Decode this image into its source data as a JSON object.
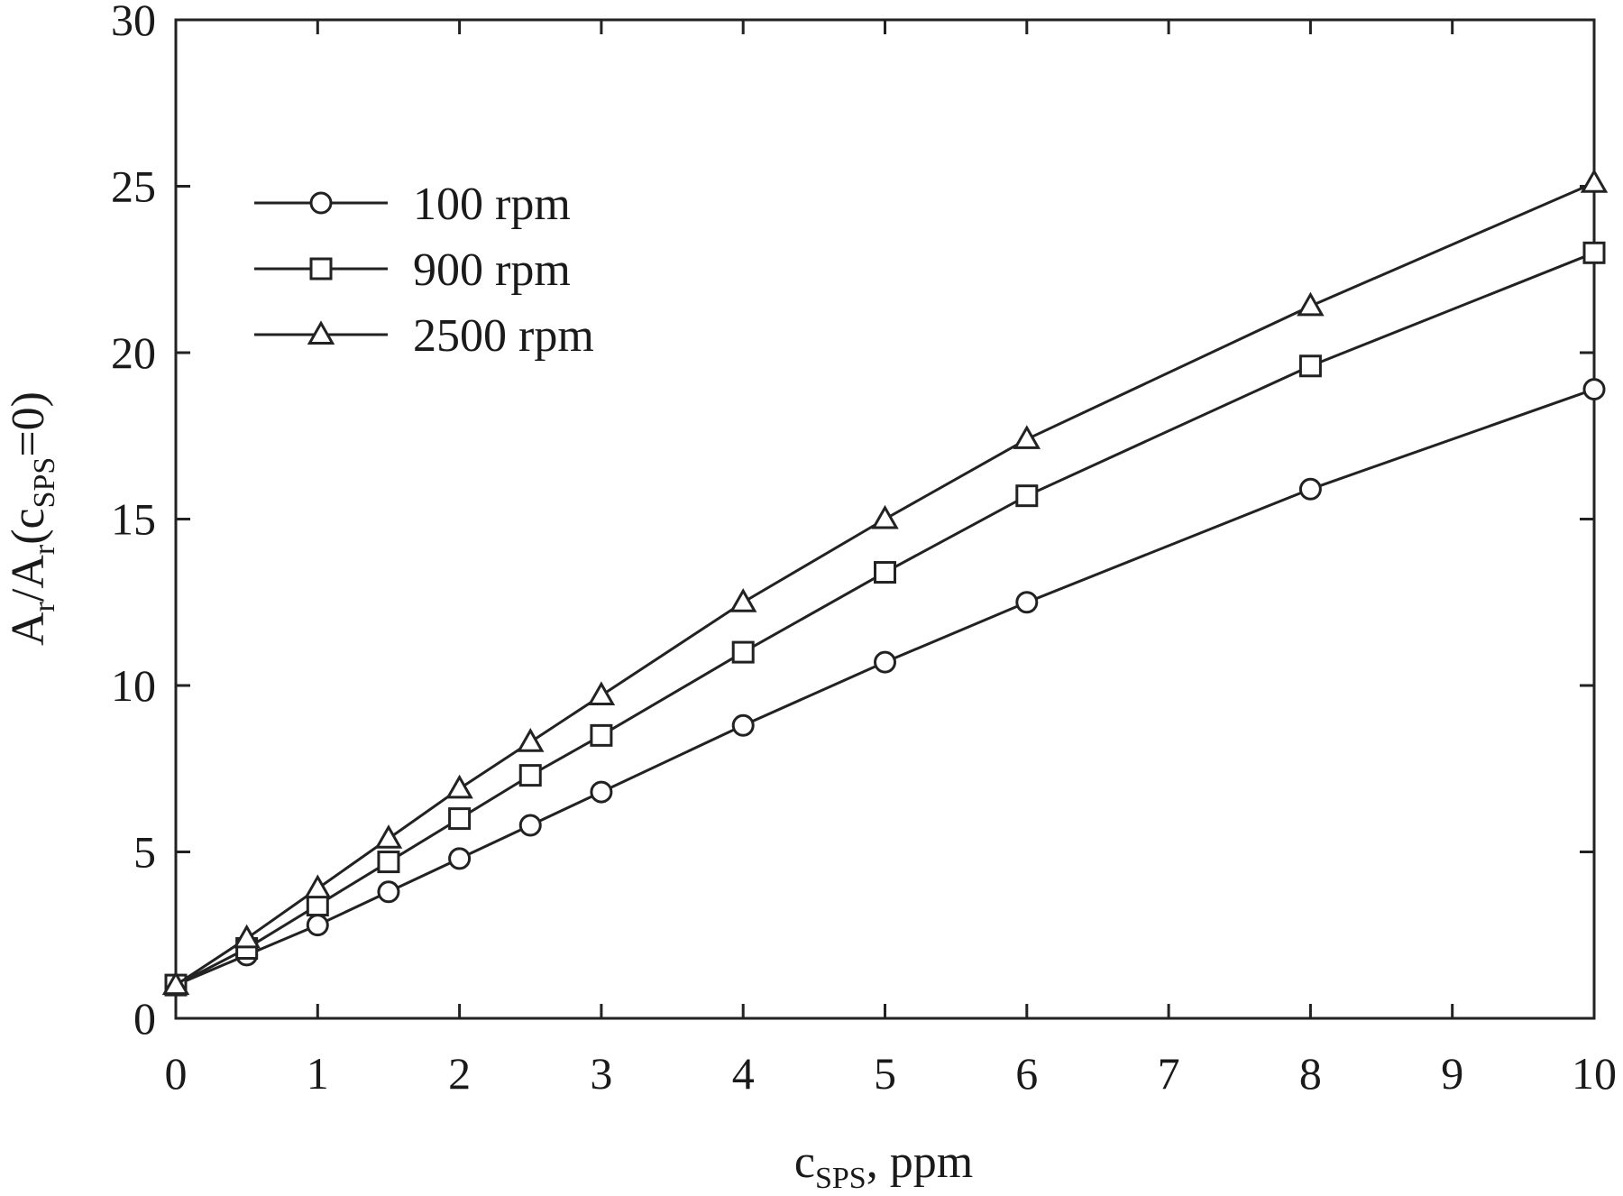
{
  "chart_data": {
    "type": "line",
    "xlabel": {
      "main": "c",
      "sub": "SPS",
      "rest": ", ppm"
    },
    "ylabel": {
      "p1": "A",
      "s1": "r",
      "p2": "/A",
      "s2": "r",
      "p3": "(c",
      "s3": "SPS",
      "p4": "=0)"
    },
    "xlim": [
      0,
      10
    ],
    "ylim": [
      0,
      30
    ],
    "x_ticks": [
      "0",
      "1",
      "2",
      "3",
      "4",
      "5",
      "6",
      "7",
      "8",
      "9",
      "10"
    ],
    "y_ticks": [
      "0",
      "5",
      "10",
      "15",
      "20",
      "25",
      "30"
    ],
    "legend_position": "upper-left",
    "grid": false,
    "series": [
      {
        "name": "100 rpm",
        "marker": "circle",
        "x": [
          0,
          0.5,
          1,
          1.5,
          2,
          2.5,
          3,
          4,
          5,
          6,
          8,
          10
        ],
        "y": [
          1.0,
          1.9,
          2.8,
          3.8,
          4.8,
          5.8,
          6.8,
          8.8,
          10.7,
          12.5,
          15.9,
          18.9
        ]
      },
      {
        "name": "900 rpm",
        "marker": "square",
        "x": [
          0,
          0.5,
          1,
          1.5,
          2,
          2.5,
          3,
          4,
          5,
          6,
          8,
          10
        ],
        "y": [
          1.0,
          2.1,
          3.4,
          4.7,
          6.0,
          7.3,
          8.5,
          11.0,
          13.4,
          15.7,
          19.6,
          23.0
        ]
      },
      {
        "name": "2500 rpm",
        "marker": "triangle",
        "x": [
          0,
          0.5,
          1,
          1.5,
          2,
          2.5,
          3,
          4,
          5,
          6,
          8,
          10
        ],
        "y": [
          1.0,
          2.4,
          3.9,
          5.4,
          6.9,
          8.3,
          9.7,
          12.5,
          15.0,
          17.4,
          21.4,
          25.1
        ]
      }
    ]
  }
}
